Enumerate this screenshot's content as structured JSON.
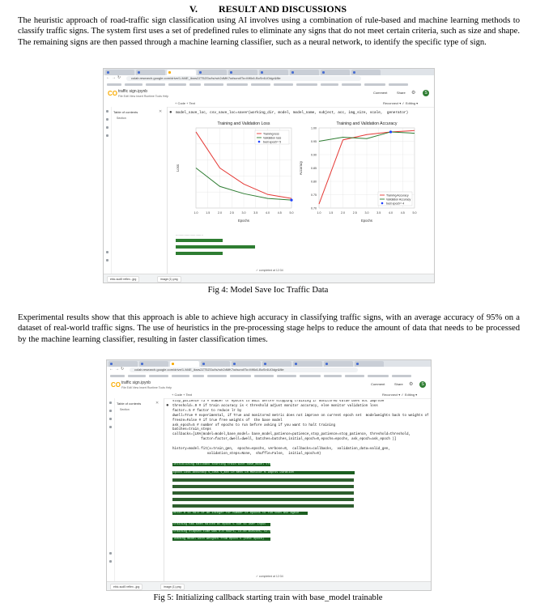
{
  "section": {
    "number": "V.",
    "title": "RESULT AND DISCUSSIONS"
  },
  "paragraph1": "The heuristic approach of road-traffic sign classification using AI involves using a combination of rule-based and machine learning methods to classify traffic signs. The system first uses a set of predefined rules to eliminate any signs that do not meet certain criteria, such as size and shape. The remaining signs are then passed through a machine learning classifier, such as a neural network, to identify the specific type of sign.",
  "paragraph2": "Experimental results show that this approach is able to achieve high accuracy in classifying traffic signs, with an average accuracy of 95% on a dataset of real-world traffic signs. The use of heuristics in the pre-processing stage helps to reduce the amount of data that needs to be processed by the machine learning classifier, resulting in faster classification times.",
  "figure4": {
    "caption": "Fig 4: Model Save Ioc Traffic Data",
    "url": "colab.research.google.com/drive/1-M4E_iksrs2ZT5ZGu/ts/ruh2dMK7o#scrollTo=MKk6-BoSr4UOdgr&file",
    "notebook_title": "traffic sign.ipynb",
    "menu": "File  Edit  View  Insert  Runtime  Tools  Help",
    "toc_title": "Table of contents",
    "toc_item": "Section",
    "comment": "Comment",
    "share": "Share",
    "avatar": "S",
    "code_line": "model_save_loc, csv_save_loc=saver(working_dir, model, model_name, subject, acc, img_size, scale,  generator)",
    "taskbar_items": [
      "ebic-sud5 reflex...jpg",
      "image (1).png"
    ],
    "status": "completed at 12:34",
    "chart_data": [
      {
        "type": "line",
        "title": "Training and Validation Loss",
        "xlabel": "Epochs",
        "ylabel": "Loss",
        "x": [
          1,
          2,
          3,
          4,
          5
        ],
        "xticks": [
          "1.0",
          "1.5",
          "2.0",
          "2.5",
          "3.0",
          "3.5",
          "4.0",
          "4.5",
          "5.0"
        ],
        "xlim": [
          1,
          5
        ],
        "ylim": [
          0,
          1
        ],
        "grid": true,
        "legend": "top-right",
        "series": [
          {
            "name": "Training loss",
            "color": "#e53935",
            "values": [
              0.95,
              0.5,
              0.3,
              0.17,
              0.12
            ]
          },
          {
            "name": "Validation loss",
            "color": "#2e7d32",
            "values": [
              0.5,
              0.27,
              0.18,
              0.12,
              0.1
            ]
          },
          {
            "name": "best epoch= 5",
            "color": "#1e40ff",
            "type": "point",
            "x": 5,
            "y": 0.1
          }
        ]
      },
      {
        "type": "line",
        "title": "Training and Validation Accuracy",
        "xlabel": "Epochs",
        "ylabel": "Accuracy",
        "x": [
          1,
          2,
          3,
          4,
          5
        ],
        "xticks": [
          "1.0",
          "1.5",
          "2.0",
          "2.5",
          "3.0",
          "3.5",
          "4.0",
          "4.5",
          "5.0"
        ],
        "yticks": [
          "0.70",
          "0.75",
          "0.80",
          "0.85",
          "0.90",
          "0.95",
          "1.00"
        ],
        "xlim": [
          1,
          5
        ],
        "ylim": [
          0.7,
          1.0
        ],
        "grid": true,
        "legend": "bottom-right",
        "series": [
          {
            "name": "Training Accuracy",
            "color": "#e53935",
            "values": [
              0.715,
              0.955,
              0.975,
              0.985,
              0.99
            ]
          },
          {
            "name": "Validation Accuracy",
            "color": "#2e7d32",
            "values": [
              0.95,
              0.965,
              0.96,
              0.985,
              0.98
            ]
          },
          {
            "name": "best epoch= 4",
            "color": "#1e40ff",
            "type": "point",
            "x": 4,
            "y": 0.985
          }
        ]
      }
    ]
  },
  "figure5": {
    "caption": "Fig 5: Initializing callback starting train with base_model trainable",
    "url": "colab.research.google.com/drive/1-M4E_iksrs2ZT5ZGu/ts/ruh2dMK7o#scrollTo=MKk6-BoSr4UOdgr&file",
    "notebook_title": "traffic sign.ipynb",
    "menu": "File  Edit  View  Insert  Runtime  Tools  Help",
    "toc_title": "Table of contents",
    "toc_item": "Section",
    "comment": "Comment",
    "share": "Share",
    "avatar": "S",
    "code_lines": [
      "stop_patience =3 # number of epochs to wait before stopping training if monitored value does not improve",
      "threshold=.9 # if train accuracy is < threshold adjust monitor accuracy, else monitor validation loss",
      "factor=.5 # factor to reduce lr by",
      "dwell=True # experimental, if True and monitored metric does not improve on current epoch set  modelweights back to weights of previous",
      "freeze=False # if true free weights of  the base model",
      "ask_epoch=5 # number of epochs to run before asking if you want to halt training",
      "batches=train_steps",
      "callbacks=[LRA(model=model,base_model= base_model,patience=patience,stop_patience=stop_patience, threshold=threshold,",
      "              factor=factor,dwell=dwell, batches=batches,initial_epoch=0,epochs=epochs, ask_epoch=ask_epoch )]",
      "",
      "history=model.fit(x=train_gen,  epochs=epochs, verbose=0,  callbacks=callbacks,  validation_data=valid_gen,",
      "                 validation_steps=None,  shuffle=False,  initial_epoch=0)"
    ],
    "output_header": "initializing callback starting train with base_model trainable",
    "output_table_header": "Epoch   Loss   Accuracy  V_loss   V_acc    LR    Next LR  Monitor  % Improv  Duration",
    "output_footer_lines": [
      "enter H to halt  or an integer for number of epochs to run then ask again",
      "training has been halted at epoch 5 due to user input",
      "training elapsed time was 0.0 hours, 14.00 minutes, 52.00 seconds",
      "loading model with weights from epoch 5 (best epoch)"
    ],
    "taskbar_items": [
      "ebic-sud5 reflex...jpg",
      "image (1).png"
    ],
    "status": "completed at 12:34"
  }
}
